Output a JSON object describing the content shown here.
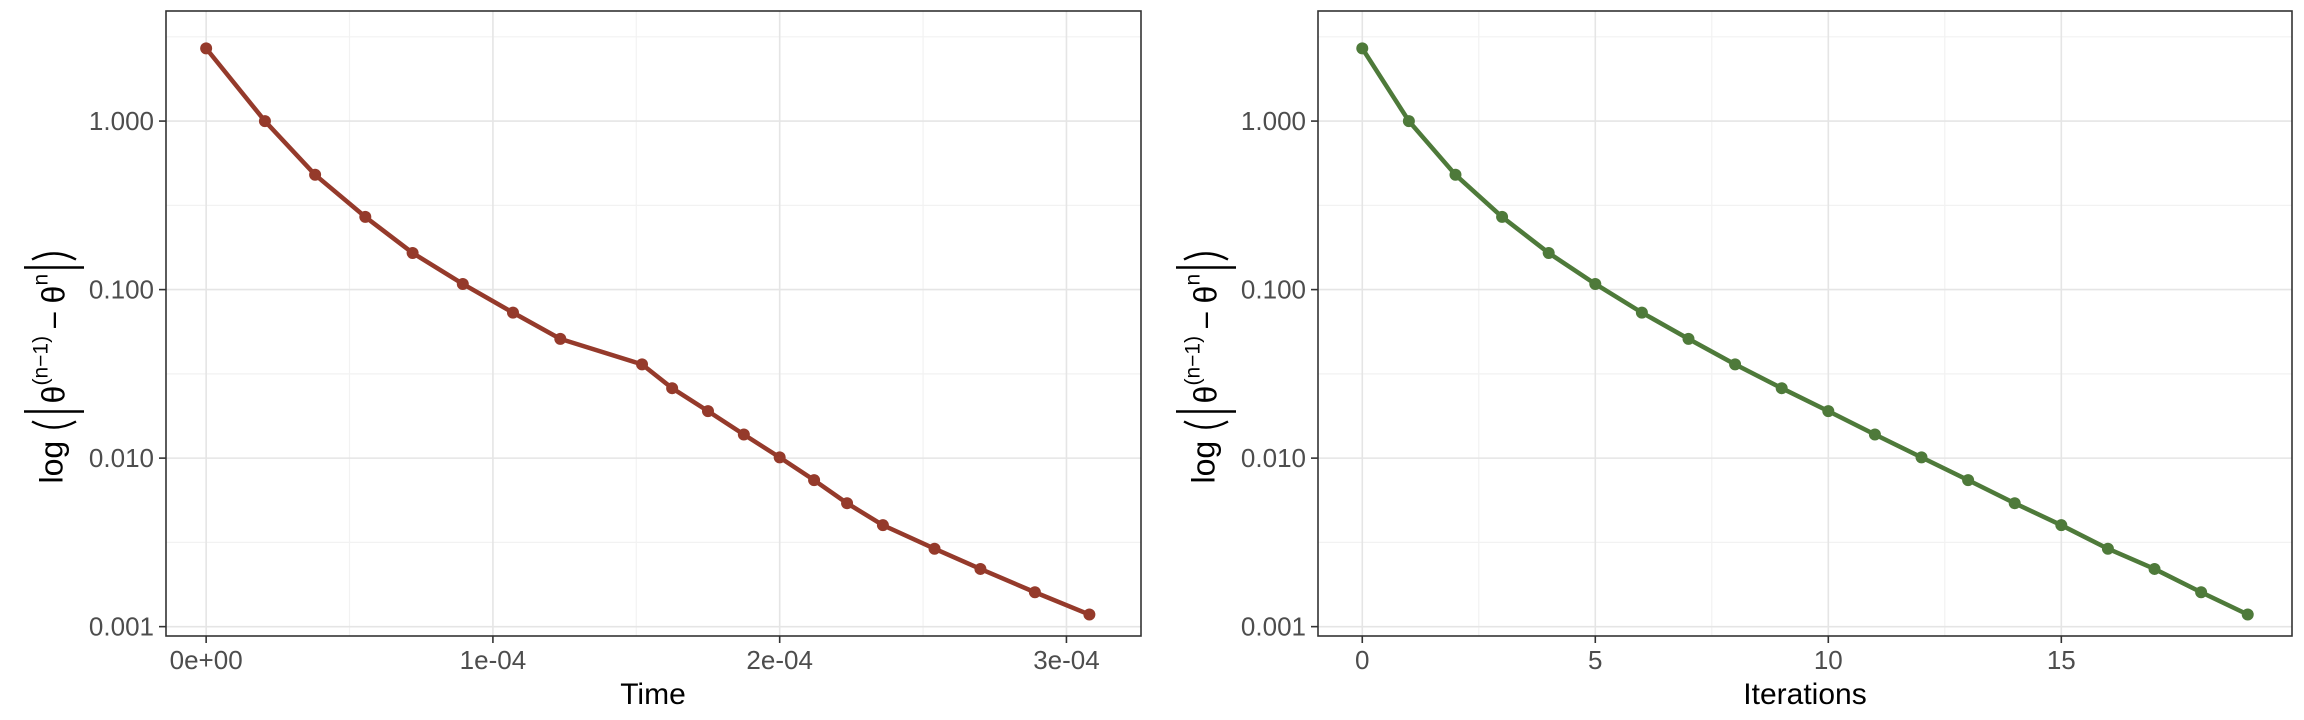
{
  "chart_data": [
    {
      "type": "line",
      "xlabel": "Time",
      "ylabel_parts": {
        "fn": "log",
        "theta": "θ",
        "sup1": "(n−1)",
        "minus": "−",
        "sup2": "n"
      },
      "yscale": "log",
      "ylim": [
        0.00088,
        4.5
      ],
      "xlim": [
        -1.4e-05,
        0.000326
      ],
      "xticks": [
        0,
        0.0001,
        0.0002,
        0.0003
      ],
      "xtick_labels": [
        "0e+00",
        "1e-04",
        "2e-04",
        "3e-04"
      ],
      "yticks": [
        0.001,
        0.01,
        0.1,
        1
      ],
      "ytick_labels": [
        "0.001",
        "0.010",
        "0.100",
        "1.000"
      ],
      "grid": true,
      "color": "#953A2B",
      "series": [
        {
          "x": [
            0,
            2.05e-05,
            3.8e-05,
            5.55e-05,
            7.2e-05,
            8.95e-05,
            0.000107,
            0.0001235,
            0.000152,
            0.0001625,
            0.000175,
            0.0001875,
            0.0002,
            0.000212,
            0.0002235,
            0.000236,
            0.000254,
            0.00027,
            0.000289,
            0.000308
          ],
          "y": [
            2.7,
            1.0,
            0.48,
            0.27,
            0.165,
            0.108,
            0.073,
            0.051,
            0.036,
            0.026,
            0.019,
            0.0138,
            0.0101,
            0.0074,
            0.0054,
            0.004,
            0.0029,
            0.0022,
            0.0016,
            0.00118
          ]
        }
      ]
    },
    {
      "type": "line",
      "xlabel": "Iterations",
      "ylabel_parts": {
        "fn": "log",
        "theta": "θ",
        "sup1": "(n−1)",
        "minus": "−",
        "sup2": "n"
      },
      "yscale": "log",
      "ylim": [
        0.00088,
        4.5
      ],
      "xlim": [
        -0.95,
        19.95
      ],
      "xticks": [
        0,
        5,
        10,
        15
      ],
      "xtick_labels": [
        "0",
        "5",
        "10",
        "15"
      ],
      "yticks": [
        0.001,
        0.01,
        0.1,
        1
      ],
      "ytick_labels": [
        "0.001",
        "0.010",
        "0.100",
        "1.000"
      ],
      "grid": true,
      "color": "#4E7A3A",
      "series": [
        {
          "x": [
            0,
            1,
            2,
            3,
            4,
            5,
            6,
            7,
            8,
            9,
            10,
            11,
            12,
            13,
            14,
            15,
            16,
            17,
            18,
            19
          ],
          "y": [
            2.7,
            1.0,
            0.48,
            0.27,
            0.165,
            0.108,
            0.073,
            0.051,
            0.036,
            0.026,
            0.019,
            0.0138,
            0.0101,
            0.0074,
            0.0054,
            0.004,
            0.0029,
            0.0022,
            0.0016,
            0.00118
          ]
        }
      ]
    }
  ]
}
